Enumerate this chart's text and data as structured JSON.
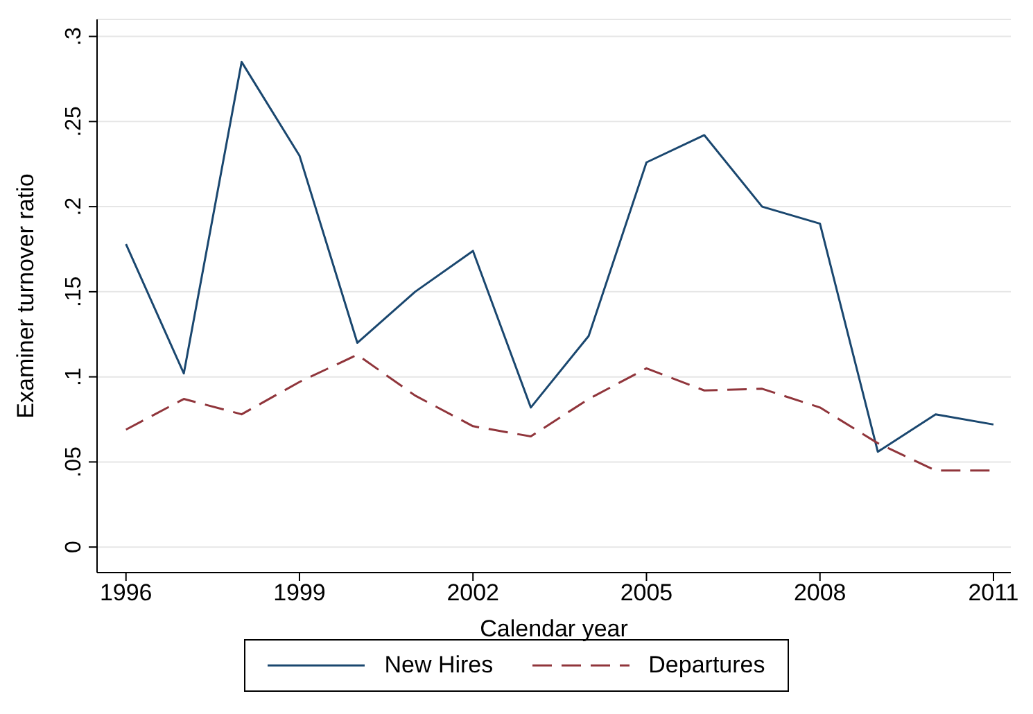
{
  "chart_data": {
    "type": "line",
    "xlabel": "Calendar year",
    "ylabel": "Examiner turnover ratio",
    "x": [
      1996,
      1997,
      1998,
      1999,
      2000,
      2001,
      2002,
      2003,
      2004,
      2005,
      2006,
      2007,
      2008,
      2009,
      2010,
      2011
    ],
    "series": [
      {
        "name": "New Hires",
        "color": "#1a476f",
        "line_style": "solid",
        "values": [
          0.178,
          0.102,
          0.285,
          0.23,
          0.12,
          0.15,
          0.174,
          0.082,
          0.124,
          0.226,
          0.242,
          0.2,
          0.19,
          0.056,
          0.078,
          0.072
        ]
      },
      {
        "name": "Departures",
        "color": "#90353b",
        "line_style": "dashed",
        "values": [
          0.069,
          0.087,
          0.078,
          0.097,
          0.113,
          0.089,
          0.071,
          0.065,
          0.087,
          0.105,
          0.092,
          0.093,
          0.082,
          0.061,
          0.045,
          0.045
        ]
      }
    ],
    "xlim": [
      1995.5,
      2011.3
    ],
    "xticks": [
      1996,
      1999,
      2002,
      2005,
      2008,
      2011
    ],
    "ylim": [
      -0.015,
      0.31
    ],
    "yticks": [
      {
        "value": 0,
        "label": "0"
      },
      {
        "value": 0.05,
        "label": ".05"
      },
      {
        "value": 0.1,
        "label": ".1"
      },
      {
        "value": 0.15,
        "label": ".15"
      },
      {
        "value": 0.2,
        "label": ".2"
      },
      {
        "value": 0.25,
        "label": ".25"
      },
      {
        "value": 0.3,
        "label": ".3"
      }
    ],
    "grid": "y",
    "legend": "bottom",
    "marker": "none"
  }
}
